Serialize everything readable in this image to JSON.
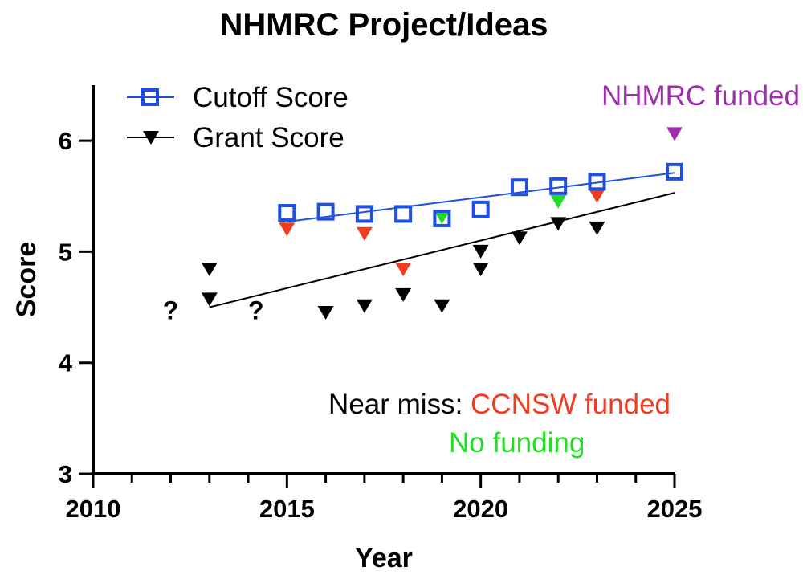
{
  "chart_data": {
    "type": "scatter",
    "title": "NHMRC Project/Ideas",
    "xlabel": "Year",
    "ylabel": "Score",
    "xlim": [
      2010,
      2025
    ],
    "ylim": [
      3,
      6.5
    ],
    "x_ticks": [
      2010,
      2015,
      2020,
      2025
    ],
    "y_ticks": [
      3,
      4,
      5,
      6
    ],
    "grid": false,
    "legend_position": "top-left",
    "colors": {
      "cutoff": "#1f4fe0",
      "grant": "#000000",
      "ccnsw_funded": "#f03c1f",
      "no_funding": "#22dd22",
      "nhmrc_funded": "#9b30a8"
    },
    "series": [
      {
        "name": "Cutoff Score",
        "marker": "open-square",
        "points": [
          {
            "x": 2015,
            "y": 5.35
          },
          {
            "x": 2016,
            "y": 5.36
          },
          {
            "x": 2017,
            "y": 5.34
          },
          {
            "x": 2018,
            "y": 5.34
          },
          {
            "x": 2019,
            "y": 5.3
          },
          {
            "x": 2020,
            "y": 5.38
          },
          {
            "x": 2021,
            "y": 5.58
          },
          {
            "x": 2022,
            "y": 5.59
          },
          {
            "x": 2023,
            "y": 5.63
          },
          {
            "x": 2025,
            "y": 5.72
          }
        ],
        "trendline": {
          "x": [
            2015,
            2025
          ],
          "y": [
            5.27,
            5.71
          ]
        }
      },
      {
        "name": "Grant Score",
        "marker": "down-triangle",
        "points": [
          {
            "x": 2013,
            "y": 4.84,
            "status": "grant"
          },
          {
            "x": 2013,
            "y": 4.57,
            "status": "grant"
          },
          {
            "x": 2015,
            "y": 5.2,
            "status": "ccnsw_funded"
          },
          {
            "x": 2016,
            "y": 4.45,
            "status": "grant"
          },
          {
            "x": 2017,
            "y": 4.51,
            "status": "grant"
          },
          {
            "x": 2017,
            "y": 5.16,
            "status": "ccnsw_funded"
          },
          {
            "x": 2018,
            "y": 4.61,
            "status": "grant"
          },
          {
            "x": 2018,
            "y": 4.84,
            "status": "ccnsw_funded"
          },
          {
            "x": 2019,
            "y": 4.51,
            "status": "grant"
          },
          {
            "x": 2019,
            "y": 5.31,
            "status": "no_funding"
          },
          {
            "x": 2020,
            "y": 4.84,
            "status": "grant"
          },
          {
            "x": 2020,
            "y": 5.0,
            "status": "grant"
          },
          {
            "x": 2021,
            "y": 5.12,
            "status": "grant"
          },
          {
            "x": 2022,
            "y": 5.25,
            "status": "grant"
          },
          {
            "x": 2022,
            "y": 5.45,
            "status": "no_funding"
          },
          {
            "x": 2023,
            "y": 5.21,
            "status": "grant"
          },
          {
            "x": 2023,
            "y": 5.5,
            "status": "ccnsw_funded"
          },
          {
            "x": 2025,
            "y": 6.06,
            "status": "nhmrc_funded"
          }
        ],
        "trendline": {
          "x": [
            2013,
            2025
          ],
          "y": [
            4.5,
            5.53
          ]
        }
      }
    ],
    "annotations": {
      "unknown_marks": [
        {
          "text": "?",
          "x": 2012,
          "y": 4.47
        },
        {
          "text": "?",
          "x": 2014.2,
          "y": 4.47
        }
      ],
      "nhmrc_funded": "NHMRC funded",
      "near_miss_prefix": "Near miss: ",
      "ccnsw_funded": "CCNSW funded",
      "no_funding": "No funding"
    }
  }
}
